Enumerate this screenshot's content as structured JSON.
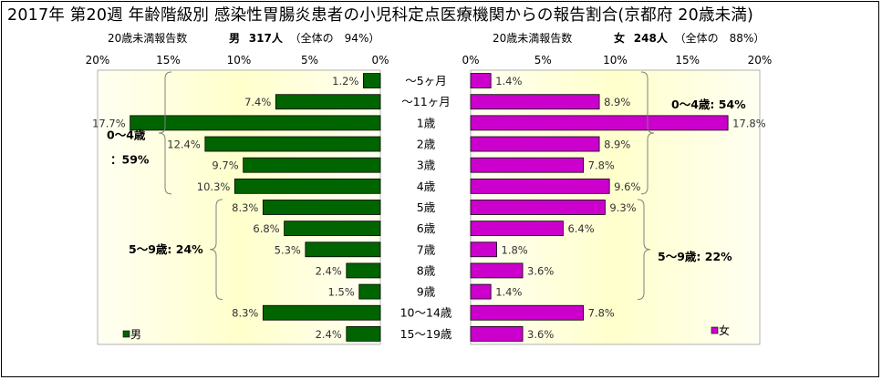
{
  "title": "2017年 第20週 年齢階級別 感染性胃腸炎患者の小児科定点医療機関からの報告割合(京都府 20歳未満)",
  "left_header": {
    "subtitle": "20歳未満報告数",
    "sex": "男",
    "count": "317人",
    "share": "（全体の　94%）"
  },
  "right_header": {
    "subtitle": "20歳未満報告数",
    "sex": "女",
    "count": "248人",
    "share": "（全体の　88%）"
  },
  "chart_data": [
    {
      "type": "bar",
      "orientation": "horizontal",
      "direction": "right-to-left",
      "categories": [
        "～5ヶ月",
        "～11ヶ月",
        "1歳",
        "2歳",
        "3歳",
        "4歳",
        "5歳",
        "6歳",
        "7歳",
        "8歳",
        "9歳",
        "10～14歳",
        "15～19歳"
      ],
      "series": [
        {
          "name": "男",
          "values": [
            1.2,
            7.4,
            17.7,
            12.4,
            9.7,
            10.3,
            8.3,
            6.8,
            5.3,
            2.4,
            1.5,
            8.3,
            2.4
          ],
          "color": "#006400"
        }
      ],
      "value_labels": [
        "1.2%",
        "7.4%",
        "17.7%",
        "12.4%",
        "9.7%",
        "10.3%",
        "8.3%",
        "6.8%",
        "5.3%",
        "2.4%",
        "1.5%",
        "8.3%",
        "2.4%"
      ],
      "xlim": [
        0,
        20
      ],
      "ticks": [
        "0%",
        "5%",
        "10%",
        "15%",
        "20%"
      ],
      "groups": [
        {
          "label": "0～4歳",
          "label2": "：59%",
          "from": "～5ヶ月",
          "to": "4歳"
        },
        {
          "label": "5～9歳: 24%",
          "from": "5歳",
          "to": "9歳"
        }
      ],
      "legend": "bottom-left"
    },
    {
      "type": "bar",
      "orientation": "horizontal",
      "direction": "left-to-right",
      "categories": [
        "～5ヶ月",
        "～11ヶ月",
        "1歳",
        "2歳",
        "3歳",
        "4歳",
        "5歳",
        "6歳",
        "7歳",
        "8歳",
        "9歳",
        "10～14歳",
        "15～19歳"
      ],
      "series": [
        {
          "name": "女",
          "values": [
            1.4,
            8.9,
            17.8,
            8.9,
            7.8,
            9.6,
            9.3,
            6.4,
            1.8,
            3.6,
            1.4,
            7.8,
            3.6
          ],
          "color": "#cc00cc"
        }
      ],
      "value_labels": [
        "1.4%",
        "8.9%",
        "17.8%",
        "8.9%",
        "7.8%",
        "9.6%",
        "9.3%",
        "6.4%",
        "1.8%",
        "3.6%",
        "1.4%",
        "7.8%",
        "3.6%"
      ],
      "xlim": [
        0,
        20
      ],
      "ticks": [
        "0%",
        "5%",
        "10%",
        "15%",
        "20%"
      ],
      "groups": [
        {
          "label": "0～4歳: 54%",
          "from": "～5ヶ月",
          "to": "4歳"
        },
        {
          "label": "5～9歳: 22%",
          "from": "5歳",
          "to": "9歳"
        }
      ],
      "legend": "bottom-right"
    }
  ]
}
